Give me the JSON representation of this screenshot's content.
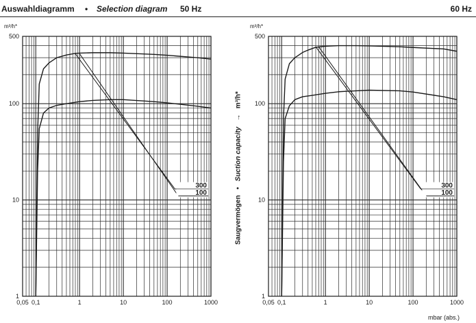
{
  "header": {
    "title_de": "Auswahldiagramm",
    "separator": "•",
    "title_en": "Selection diagram",
    "freq_left": "50 Hz",
    "freq_right": "60 Hz"
  },
  "vertical_axis": {
    "label_de": "Saugvermögen",
    "separator": "•",
    "label_en": "Suction capacity",
    "arrow": "→",
    "unit": "m³/h*"
  },
  "colors": {
    "ink": "#1a1a1a",
    "grid": "#2a2a2a",
    "background": "#ffffff"
  },
  "chart_data": [
    {
      "type": "line",
      "panel": "50 Hz",
      "x_scale": "log",
      "y_scale": "log",
      "xlim": [
        0.05,
        1000
      ],
      "ylim": [
        1,
        500
      ],
      "xlabel": "",
      "ylabel": "m³/h*",
      "x_ticks": [
        "0,05",
        "0,1",
        "1",
        "10",
        "100",
        "1000"
      ],
      "y_ticks": [
        "1",
        "10",
        "100",
        "500"
      ],
      "grid": true,
      "series": [
        {
          "name": "300",
          "x": [
            0.1,
            0.11,
            0.12,
            0.15,
            0.2,
            0.3,
            0.5,
            0.8,
            1,
            2,
            5,
            10,
            50,
            100,
            500,
            1000
          ],
          "y": [
            1,
            50,
            160,
            230,
            265,
            300,
            320,
            333,
            335,
            338,
            338,
            335,
            325,
            318,
            300,
            290
          ]
        },
        {
          "name": "100",
          "x": [
            0.1,
            0.11,
            0.12,
            0.15,
            0.2,
            0.3,
            0.5,
            1,
            2,
            5,
            10,
            50,
            100,
            500,
            1000
          ],
          "y": [
            1,
            20,
            55,
            80,
            90,
            96,
            100,
            105,
            108,
            110,
            110,
            105,
            102,
            94,
            90
          ]
        }
      ],
      "legend_labels": [
        "300",
        "100"
      ],
      "selection_lines": [
        {
          "from": [
            0.8,
            330
          ],
          "to": [
            150,
            13
          ]
        },
        {
          "from": [
            1.0,
            330
          ],
          "to": [
            180,
            11
          ]
        }
      ]
    },
    {
      "type": "line",
      "panel": "60 Hz",
      "x_scale": "log",
      "y_scale": "log",
      "xlim": [
        0.05,
        1000
      ],
      "ylim": [
        1,
        500
      ],
      "xlabel": "mbar (abs.)",
      "ylabel": "m³/h*",
      "x_ticks": [
        "0,05",
        "0,1",
        "1",
        "10",
        "100",
        "1000"
      ],
      "y_ticks": [
        "1",
        "10",
        "100",
        "500"
      ],
      "grid": true,
      "series": [
        {
          "name": "300",
          "x": [
            0.1,
            0.11,
            0.12,
            0.15,
            0.2,
            0.3,
            0.4,
            0.6,
            1,
            2,
            5,
            10,
            50,
            100,
            500,
            1000
          ],
          "y": [
            1,
            70,
            180,
            260,
            300,
            340,
            360,
            385,
            395,
            400,
            400,
            398,
            390,
            383,
            370,
            350
          ]
        },
        {
          "name": "100",
          "x": [
            0.1,
            0.11,
            0.12,
            0.15,
            0.2,
            0.3,
            0.5,
            1,
            2,
            5,
            10,
            50,
            100,
            500,
            1000
          ],
          "y": [
            1,
            25,
            70,
            95,
            110,
            118,
            122,
            128,
            133,
            136,
            138,
            136,
            132,
            118,
            110
          ]
        }
      ],
      "legend_labels": [
        "300",
        "100"
      ],
      "selection_lines": [
        {
          "from": [
            0.6,
            390
          ],
          "to": [
            150,
            13
          ]
        },
        {
          "from": [
            0.7,
            390
          ],
          "to": [
            200,
            11
          ]
        }
      ]
    }
  ]
}
